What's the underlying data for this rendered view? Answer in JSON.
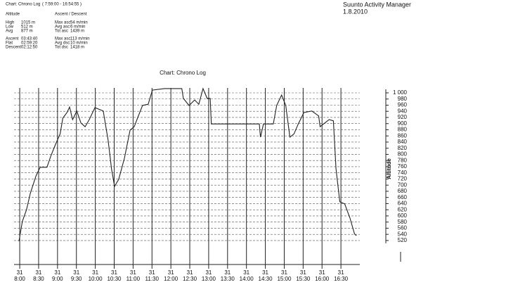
{
  "header": {
    "title": "Chart: Chrono Log",
    "range": "( 7:59:00 - 16:54:55 )",
    "app": "Suunto Activity Manager",
    "date": "1.8.2010",
    "altitude_heading": "Altitude",
    "altitude_stats": [
      [
        "High",
        "1015 m"
      ],
      [
        "Low",
        "512 m"
      ],
      [
        "Avg",
        "877 m"
      ]
    ],
    "time_stats": [
      [
        "Ascent",
        "03:43:40"
      ],
      [
        "Flat",
        "02:59:20"
      ],
      [
        "Descent",
        "02:12:50"
      ]
    ],
    "ascent_heading": "Ascent / Descent",
    "ascent_stats": [
      [
        "Max asc",
        "54 m/min"
      ],
      [
        "Avg asc",
        "6 m/min"
      ],
      [
        "Tot asc",
        "1439 m"
      ]
    ],
    "descent_stats": [
      [
        "Max asc",
        "113 m/min"
      ],
      [
        "Avg dsc",
        "10 m/min"
      ],
      [
        "Tot dsc",
        "1418 m"
      ]
    ]
  },
  "chart_data": {
    "type": "line",
    "title": "Chart: Chrono Log",
    "y_label": "Altitude",
    "color": "#222222",
    "grid": true,
    "x": [
      7.98,
      8.07,
      8.18,
      8.28,
      8.43,
      8.54,
      8.72,
      8.82,
      8.95,
      9.07,
      9.14,
      9.25,
      9.32,
      9.4,
      9.51,
      9.62,
      9.73,
      9.84,
      9.99,
      10.21,
      10.34,
      10.43,
      10.51,
      10.62,
      10.77,
      10.92,
      11.03,
      11.14,
      11.25,
      11.4,
      11.51,
      11.83,
      12.29,
      12.33,
      12.48,
      12.63,
      12.74,
      12.85,
      12.96,
      13.04,
      13.07,
      14.34,
      14.37,
      14.45,
      14.71,
      14.8,
      14.93,
      15.04,
      15.15,
      15.26,
      15.37,
      15.52,
      15.73,
      15.91,
      15.95,
      16.04,
      16.19,
      16.3,
      16.37,
      16.47,
      16.6,
      16.74,
      16.86,
      16.91
    ],
    "values": [
      518,
      582,
      620,
      673,
      730,
      758,
      758,
      794,
      833,
      867,
      918,
      936,
      954,
      913,
      941,
      902,
      890,
      913,
      952,
      941,
      845,
      753,
      696,
      719,
      787,
      879,
      890,
      925,
      959,
      963,
      1009,
      1014,
      1014,
      982,
      959,
      977,
      963,
      1014,
      982,
      982,
      899,
      899,
      856,
      899,
      899,
      959,
      993,
      959,
      856,
      867,
      899,
      936,
      941,
      925,
      890,
      899,
      913,
      909,
      753,
      646,
      639,
      593,
      541,
      536
    ],
    "xlim": [
      7.85,
      17.0
    ],
    "xticks": [
      {
        "value": 8.0,
        "label": "31\n8:00"
      },
      {
        "value": 8.5,
        "label": "31\n8:30"
      },
      {
        "value": 9.0,
        "label": "31\n9:00"
      },
      {
        "value": 9.5,
        "label": "31\n9:30"
      },
      {
        "value": 10.0,
        "label": "31\n10:00"
      },
      {
        "value": 10.5,
        "label": "31\n10:30"
      },
      {
        "value": 11.0,
        "label": "31\n11:00"
      },
      {
        "value": 11.5,
        "label": "31\n11:30"
      },
      {
        "value": 12.0,
        "label": "31\n12:00"
      },
      {
        "value": 12.5,
        "label": "31\n12:30"
      },
      {
        "value": 13.0,
        "label": "31\n13:00"
      },
      {
        "value": 13.5,
        "label": "31\n13:30"
      },
      {
        "value": 14.0,
        "label": "31\n14:00"
      },
      {
        "value": 14.5,
        "label": "31\n14:30"
      },
      {
        "value": 15.0,
        "label": "31\n15:00"
      },
      {
        "value": 15.5,
        "label": "31\n15:30"
      },
      {
        "value": 16.0,
        "label": "31\n16:00"
      },
      {
        "value": 16.5,
        "label": "31\n16:30"
      }
    ],
    "ylim": [
      442,
      1016
    ],
    "yticks": [
      520,
      540,
      560,
      580,
      600,
      620,
      640,
      660,
      680,
      700,
      720,
      740,
      760,
      780,
      800,
      820,
      840,
      860,
      880,
      900,
      920,
      940,
      960,
      980,
      {
        "value": 1000,
        "label": "1 000"
      }
    ]
  }
}
